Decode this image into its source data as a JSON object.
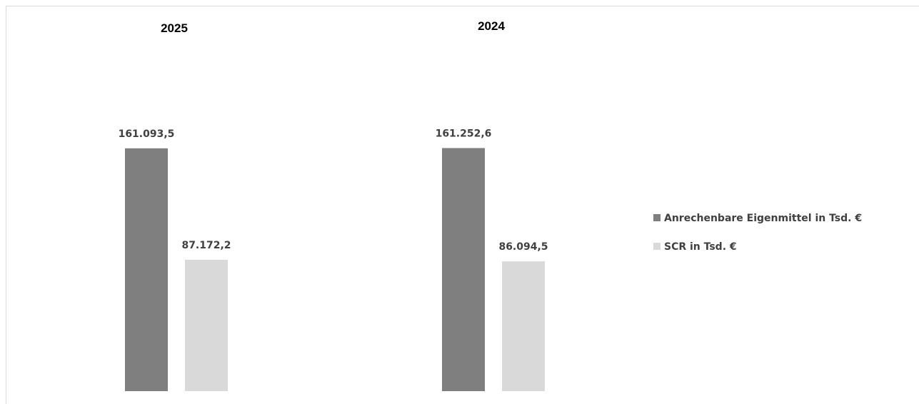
{
  "chart_data": {
    "type": "bar",
    "categories": [
      "2025",
      "2024"
    ],
    "series": [
      {
        "name": "Anrechenbare Eigenmittel in Tsd. €",
        "color": "#7f7f7f",
        "values": [
          161093.5,
          161252.6
        ],
        "labels": [
          "161.093,5",
          "161.252,6"
        ]
      },
      {
        "name": "SCR in Tsd. €",
        "color": "#d9d9d9",
        "values": [
          87172.2,
          86094.5
        ],
        "labels": [
          "87.172,2",
          "86.094,5"
        ]
      }
    ],
    "ylim": [
      0,
      250000
    ],
    "grid": false,
    "legend_position": "right"
  }
}
